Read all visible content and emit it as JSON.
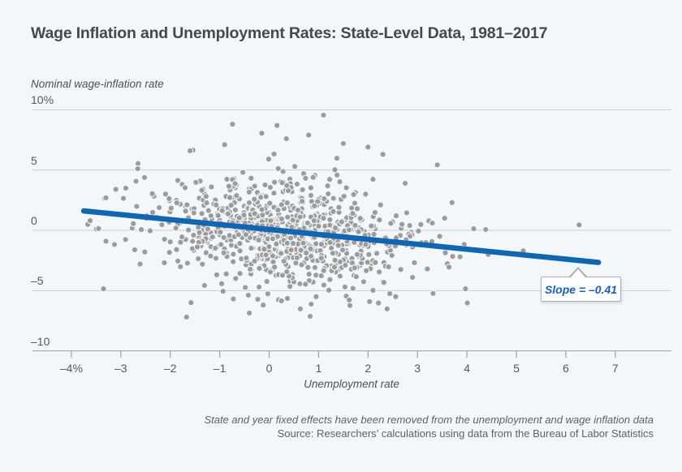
{
  "title": "Wage Inflation and Unemployment Rates: State-Level Data, 1981–2017",
  "y_axis": {
    "label": "Nominal wage-inflation rate",
    "ticks": [
      "10%",
      "5",
      "0",
      "–5",
      "–10"
    ],
    "values": [
      10,
      5,
      0,
      -5,
      -10
    ]
  },
  "x_axis": {
    "label": "Unemployment rate",
    "ticks": [
      "–4%",
      "–3",
      "–2",
      "–1",
      "0",
      "1",
      "2",
      "3",
      "4",
      "5",
      "6",
      "7"
    ],
    "values": [
      -4,
      -3,
      -2,
      -1,
      0,
      1,
      2,
      3,
      4,
      5,
      6,
      7
    ]
  },
  "annotation": {
    "slope_label": "Slope = –0.41",
    "slope": -0.41
  },
  "notes": {
    "footnote": "State and year fixed effects have been removed from the unemployment and wage inflation data",
    "source": "Source: Researchers’ calculations using data from the Bureau of Labor Statistics"
  },
  "colors": {
    "background": "#f3f7fa",
    "accent_blue": "#1066b0",
    "dot_gray": "#9b9b9b",
    "dot_ring": "#f1f5f8",
    "title_text": "#45494e",
    "axis_text": "#54595e",
    "muted_text": "#59626b",
    "gridline": "#c9ced3",
    "axis_line": "#9aa0a6",
    "callout_border": "#a9b0b6",
    "callout_bg": "#ffffff"
  },
  "chart_data": {
    "type": "scatter",
    "title": "Wage Inflation and Unemployment Rates: State-Level Data, 1981–2017",
    "xlabel": "Unemployment rate",
    "ylabel": "Nominal wage-inflation rate",
    "xlim": [
      -4.8,
      8.1
    ],
    "ylim": [
      -10,
      10
    ],
    "grid": "horizontal-only",
    "x_ticks": [
      -4,
      -3,
      -2,
      -1,
      0,
      1,
      2,
      3,
      4,
      5,
      6,
      7
    ],
    "y_gridlines": [
      10,
      5,
      0,
      -5,
      -10
    ],
    "trend_line": {
      "x1": -3.75,
      "y1": 1.61,
      "x2": 6.66,
      "y2": -2.66,
      "slope": -0.41
    },
    "cloud": {
      "seed": 12345,
      "n": 840,
      "x_mean": 0.25,
      "x_sd": 1.3,
      "y_slope": -0.43,
      "y_intercept": -0.1,
      "y_sd": 2.2,
      "x_range": [
        -3.7,
        4.55
      ],
      "y_range": [
        -7.3,
        9.6
      ]
    },
    "fringe": {
      "seed": 777,
      "n": 24,
      "x_mean": 0.1,
      "x_sd": 1.9,
      "y_slope": -0.43,
      "y_intercept": -0.2,
      "y_sd": 3.0,
      "x_range": [
        -3.7,
        4.55
      ],
      "y_range": [
        -7.3,
        9.6
      ]
    },
    "outlier_points": [
      [
        1.1,
        9.55
      ],
      [
        -0.74,
        8.8
      ],
      [
        0.16,
        8.7
      ],
      [
        -0.15,
        8.05
      ],
      [
        0.8,
        7.9
      ],
      [
        0.35,
        7.6
      ],
      [
        1.5,
        7.2
      ],
      [
        -0.9,
        7.1
      ],
      [
        2.0,
        6.9
      ],
      [
        -1.6,
        6.6
      ],
      [
        2.3,
        6.3
      ],
      [
        3.4,
        5.43
      ],
      [
        2.1,
        4.23
      ],
      [
        1.95,
        3.0
      ],
      [
        2.75,
        3.9
      ],
      [
        3.7,
        2.3
      ],
      [
        3.55,
        1.0
      ],
      [
        3.3,
        0.6
      ],
      [
        3.45,
        -0.5
      ],
      [
        3.2,
        -3.2
      ],
      [
        2.9,
        -3.9
      ],
      [
        6.27,
        0.45
      ],
      [
        5.14,
        -1.7
      ],
      [
        4.43,
        -2.0
      ],
      [
        4.14,
        0.13
      ],
      [
        4.38,
        0.07
      ],
      [
        3.97,
        -4.85
      ],
      [
        3.86,
        -2.2
      ],
      [
        -3.35,
        -4.85
      ],
      [
        -3.3,
        2.7
      ],
      [
        -3.1,
        3.4
      ],
      [
        -2.9,
        3.5
      ],
      [
        -2.61,
        -2.8
      ],
      [
        -3.62,
        0.8
      ],
      [
        -3.45,
        0.15
      ],
      [
        -3.3,
        -0.9
      ],
      [
        -1.58,
        -6.0
      ],
      [
        -1.67,
        -7.2
      ],
      [
        -0.4,
        -6.86
      ],
      [
        0.83,
        -7.13
      ],
      [
        0.63,
        -6.52
      ],
      [
        0.85,
        -6.12
      ],
      [
        1.62,
        -5.78
      ],
      [
        2.44,
        -5.25
      ],
      [
        2.1,
        -4.98
      ],
      [
        0.25,
        -5.85
      ],
      [
        0.37,
        -5.65
      ],
      [
        -0.42,
        -5.38
      ],
      [
        -0.23,
        -5.72
      ]
    ],
    "point_style": {
      "radius": 3.6,
      "fill": "#9b9b9b",
      "ring": "#f1f5f8"
    }
  }
}
